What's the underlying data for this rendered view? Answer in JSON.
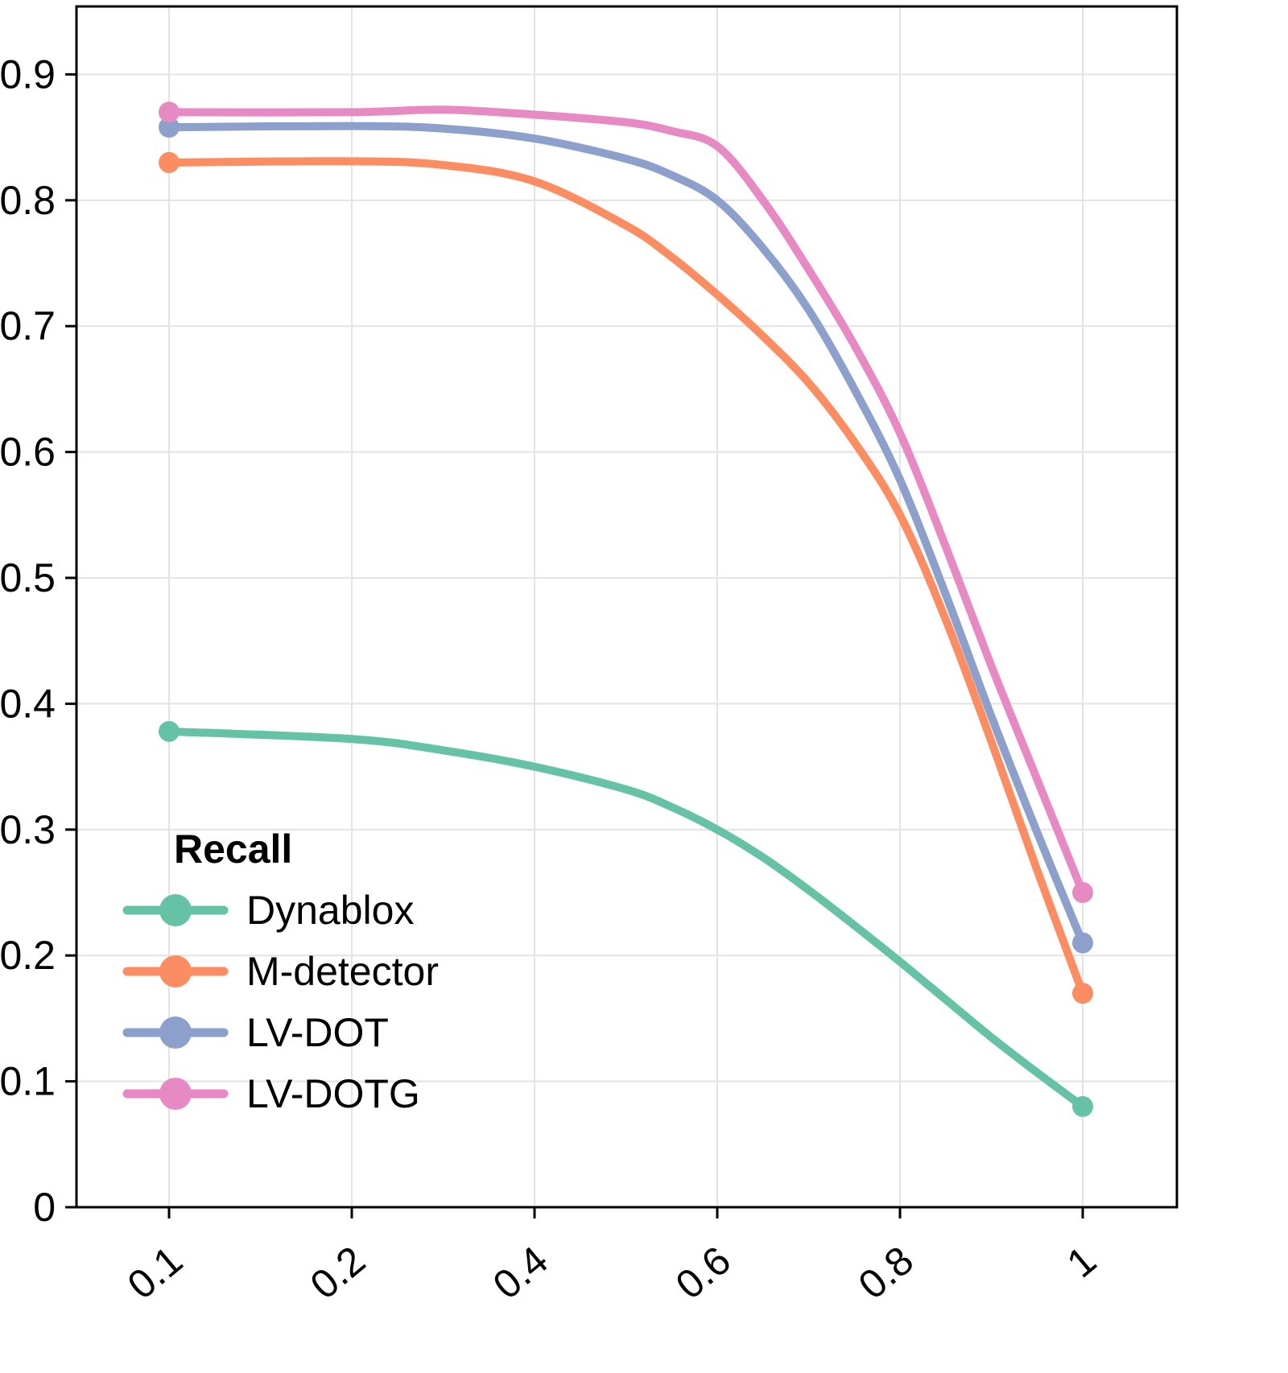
{
  "chart_data": {
    "type": "line",
    "title": "",
    "legend_title": "Recall",
    "legend_position": "lower-left",
    "grid": true,
    "background": "#ffffff",
    "grid_color": "#e3e3e3",
    "axis_color": "#000000",
    "x": [
      0.1,
      0.2,
      0.3,
      0.4,
      0.5,
      0.55,
      0.6,
      0.65,
      0.7,
      0.75,
      0.8,
      0.85,
      0.9,
      0.95,
      1.0
    ],
    "x_ticks": {
      "values": [
        0.1,
        0.2,
        0.4,
        0.6,
        0.8,
        1.0
      ],
      "labels": [
        "0.1",
        "0.2",
        "0.4",
        "0.6",
        "0.8",
        "1"
      ]
    },
    "y_ticks": {
      "values": [
        0,
        0.1,
        0.2,
        0.3,
        0.4,
        0.5,
        0.6,
        0.7,
        0.8,
        0.9
      ],
      "labels": [
        "0",
        "0.1",
        "0.2",
        "0.3",
        "0.4",
        "0.5",
        "0.6",
        "0.7",
        "0.8",
        "0.9"
      ]
    },
    "ylim": [
      0,
      0.954
    ],
    "series": [
      {
        "name": "Dynablox",
        "color": "#66C2A5",
        "values": [
          0.378,
          0.372,
          0.363,
          0.35,
          0.332,
          0.318,
          0.3,
          0.278,
          0.252,
          0.224,
          0.195,
          0.165,
          0.135,
          0.107,
          0.08
        ]
      },
      {
        "name": "M-detector",
        "color": "#FC8D62",
        "values": [
          0.83,
          0.831,
          0.828,
          0.815,
          0.78,
          0.755,
          0.725,
          0.692,
          0.655,
          0.608,
          0.55,
          0.467,
          0.37,
          0.268,
          0.17
        ]
      },
      {
        "name": "LV-DOT",
        "color": "#8DA0CB",
        "values": [
          0.858,
          0.859,
          0.857,
          0.849,
          0.833,
          0.82,
          0.8,
          0.762,
          0.713,
          0.65,
          0.578,
          0.487,
          0.39,
          0.298,
          0.21
        ]
      },
      {
        "name": "LV-DOTG",
        "color": "#E78AC3",
        "values": [
          0.87,
          0.87,
          0.872,
          0.868,
          0.862,
          0.855,
          0.843,
          0.8,
          0.745,
          0.685,
          0.615,
          0.525,
          0.43,
          0.34,
          0.25
        ]
      }
    ]
  }
}
